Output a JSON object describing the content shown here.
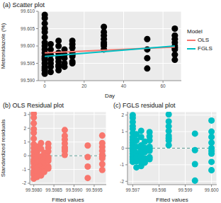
{
  "chart_data": [
    {
      "type": "scatter",
      "title": "(a) Scatter plot",
      "x_label": "Day",
      "y_label": "Metronidazole (%)",
      "color": "#000000",
      "x": [
        0,
        0,
        0,
        0,
        0,
        0,
        0,
        0,
        0,
        0,
        0,
        0,
        0,
        0,
        0,
        0,
        0,
        0,
        3,
        3,
        3,
        3,
        3,
        3,
        3,
        7,
        7,
        7,
        7,
        7,
        7,
        7,
        7,
        7,
        10,
        10,
        10,
        10,
        10,
        14,
        14,
        14,
        14,
        14,
        14,
        14,
        14,
        30,
        30,
        30,
        30,
        30,
        30,
        30,
        30,
        52,
        52,
        52,
        52,
        66,
        66,
        66,
        66,
        66,
        66,
        66,
        66,
        66
      ],
      "values": [
        99.609,
        99.608,
        99.6065,
        99.605,
        99.604,
        99.6025,
        99.601,
        99.6,
        99.599,
        99.598,
        99.597,
        99.5965,
        99.596,
        99.595,
        99.594,
        99.5935,
        99.593,
        99.592,
        99.6005,
        99.599,
        99.5975,
        99.596,
        99.595,
        99.594,
        99.5925,
        99.6015,
        99.6,
        99.598,
        99.597,
        99.5965,
        99.5955,
        99.5945,
        99.594,
        99.593,
        99.599,
        99.5975,
        99.5965,
        99.595,
        99.594,
        99.6015,
        99.6005,
        99.5995,
        99.598,
        99.5975,
        99.597,
        99.5955,
        99.595,
        99.6055,
        99.604,
        99.603,
        99.602,
        99.601,
        99.6005,
        99.6,
        99.599,
        99.602,
        99.599,
        99.5965,
        99.5935,
        99.605,
        99.603,
        99.602,
        99.601,
        99.6,
        99.5995,
        99.599,
        99.5975,
        99.596
      ],
      "series": [
        {
          "name": "OLS",
          "type": "line",
          "color": "#F8766D",
          "x": [
            0,
            66
          ],
          "values": [
            99.598,
            99.5997
          ]
        },
        {
          "name": "FGLS",
          "type": "line",
          "color": "#00BFC4",
          "x": [
            0,
            66
          ],
          "values": [
            99.597,
            99.6
          ]
        }
      ],
      "legend": "right",
      "legend_title": "Model",
      "xlim": [
        -3.3,
        69.3
      ],
      "xticks": [
        0,
        20,
        40,
        60
      ],
      "ylim": [
        99.59,
        99.61
      ],
      "yticks": [
        {
          "value": 99.59,
          "label": "99.590"
        },
        99.595,
        {
          "value": 99.6,
          "label": "99.600"
        },
        99.605,
        {
          "value": 99.61,
          "label": "99.610"
        }
      ],
      "grid": true
    },
    {
      "type": "scatter",
      "title": "(b) OLS Residual plot",
      "x_label": "Fitted values",
      "y_label": "Standardized residuals",
      "color": "#F8766D",
      "x": [
        99.598,
        99.598,
        99.598,
        99.598,
        99.598,
        99.598,
        99.598,
        99.598,
        99.598,
        99.598,
        99.598,
        99.598,
        99.598,
        99.598,
        99.598,
        99.598,
        99.598,
        99.598,
        99.59808,
        99.59808,
        99.59808,
        99.59808,
        99.59808,
        99.59808,
        99.59808,
        99.59818,
        99.59818,
        99.59818,
        99.59818,
        99.59818,
        99.59818,
        99.59818,
        99.59818,
        99.59818,
        99.59826,
        99.59826,
        99.59826,
        99.59826,
        99.59826,
        99.59836,
        99.59836,
        99.59836,
        99.59836,
        99.59836,
        99.59836,
        99.59836,
        99.59836,
        99.59877,
        99.59877,
        99.59877,
        99.59877,
        99.59877,
        99.59877,
        99.59877,
        99.59877,
        99.59934,
        99.59934,
        99.59934,
        99.59934,
        99.5997,
        99.5997,
        99.5997,
        99.5997,
        99.5997,
        99.5997,
        99.5997,
        99.5997,
        99.5997
      ],
      "values": [
        3.06,
        2.78,
        2.36,
        1.94,
        1.67,
        1.25,
        0.83,
        0.56,
        0.28,
        0,
        -0.28,
        -0.42,
        -0.56,
        -0.83,
        -1.11,
        -1.25,
        -1.39,
        -1.67,
        0.67,
        0.26,
        -0.16,
        -0.58,
        -0.86,
        -1.13,
        -1.55,
        0.92,
        0.51,
        -0.05,
        -0.33,
        -0.47,
        -0.74,
        -1.02,
        -1.16,
        -1.44,
        0.21,
        -0.21,
        -0.49,
        -0.91,
        -1.18,
        0.87,
        0.59,
        0.32,
        -0.1,
        -0.24,
        -0.38,
        -0.79,
        -0.93,
        1.87,
        1.45,
        1.18,
        0.9,
        0.62,
        0.48,
        0.34,
        0.06,
        0.74,
        -0.09,
        -0.79,
        -1.62,
        1.47,
        0.92,
        0.64,
        0.36,
        0.08,
        -0.06,
        -0.19,
        -0.61,
        -1.03
      ],
      "hline": 0,
      "xlim": [
        99.5979,
        99.5998
      ],
      "xticks": [
        {
          "value": 99.598,
          "label": "99.5980"
        },
        99.5985,
        {
          "value": 99.599,
          "label": "99.5990"
        },
        99.5995
      ],
      "ylim": [
        -2.1,
        3.2
      ],
      "yticks": [
        -2,
        -1,
        0,
        1,
        2,
        3
      ],
      "grid": true
    },
    {
      "type": "scatter",
      "title": "(c) FGLS residual plot",
      "x_label": "Fitted values",
      "color": "#00BFC4",
      "x": [
        99.597,
        99.597,
        99.597,
        99.597,
        99.597,
        99.597,
        99.597,
        99.597,
        99.597,
        99.597,
        99.597,
        99.597,
        99.597,
        99.597,
        99.597,
        99.597,
        99.597,
        99.597,
        99.59714,
        99.59714,
        99.59714,
        99.59714,
        99.59714,
        99.59714,
        99.59714,
        99.59732,
        99.59732,
        99.59732,
        99.59732,
        99.59732,
        99.59732,
        99.59732,
        99.59732,
        99.59732,
        99.59746,
        99.59746,
        99.59746,
        99.59746,
        99.59746,
        99.59764,
        99.59764,
        99.59764,
        99.59764,
        99.59764,
        99.59764,
        99.59764,
        99.59764,
        99.59837,
        99.59837,
        99.59837,
        99.59837,
        99.59837,
        99.59837,
        99.59837,
        99.59837,
        99.59937,
        99.59937,
        99.59937,
        99.59937,
        99.6,
        99.6,
        99.6,
        99.6,
        99.6,
        99.6,
        99.6,
        99.6,
        99.6
      ],
      "values": [
        2.0,
        1.83,
        1.58,
        1.33,
        1.17,
        0.92,
        0.67,
        0.5,
        0.33,
        0.17,
        0,
        -0.08,
        -0.17,
        -0.33,
        -0.5,
        -0.58,
        -0.67,
        -0.83,
        0.84,
        0.47,
        0.09,
        -0.29,
        -0.54,
        -0.79,
        -1.16,
        1.05,
        0.67,
        0.17,
        -0.08,
        -0.21,
        -0.46,
        -0.71,
        -0.83,
        -1.08,
        0.39,
        0.01,
        -0.24,
        -0.62,
        -0.87,
        0.97,
        0.72,
        0.47,
        0.09,
        -0.04,
        -0.16,
        -0.54,
        -0.66,
        2.04,
        1.61,
        1.32,
        1.04,
        0.75,
        0.61,
        0.47,
        0.18,
        0.88,
        -0.12,
        -0.96,
        -1.96,
        1.67,
        1.0,
        0.67,
        0.33,
        0,
        -0.17,
        -0.33,
        -0.83,
        -1.33
      ],
      "hline": 0,
      "xlim": [
        99.5968,
        99.6002
      ],
      "xticks": [
        99.597,
        99.598,
        99.599,
        {
          "value": 99.6,
          "label": "99.600"
        }
      ],
      "ylim": [
        -2.2,
        2.2
      ],
      "yticks": [
        -2,
        -1,
        0,
        1,
        2
      ],
      "grid": true
    }
  ]
}
